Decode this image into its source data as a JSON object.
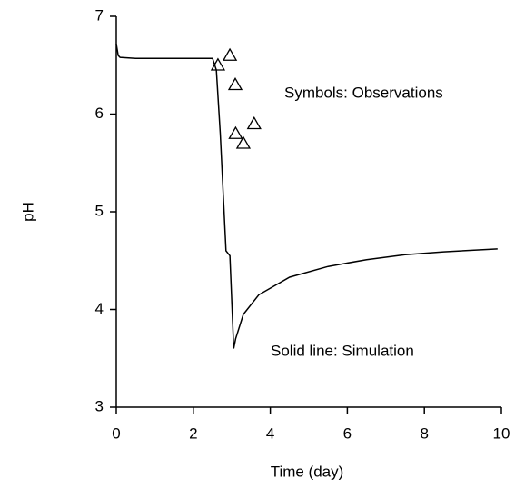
{
  "chart_data": {
    "type": "line",
    "x_label": "Time (day)",
    "y_label": "pH",
    "xlim": [
      0,
      10
    ],
    "ylim": [
      3,
      7
    ],
    "xticks": [
      0,
      2,
      4,
      6,
      8,
      10
    ],
    "yticks": [
      3,
      4,
      5,
      6,
      7
    ],
    "annotations": [
      "Symbols: Observations",
      "Solid line: Simulation"
    ],
    "series": [
      {
        "color": "#000000",
        "marker": "none",
        "linestyle": "solid",
        "x": [
          0,
          0.05,
          0.1,
          0.5,
          1.5,
          2.5,
          2.6,
          2.7,
          2.8,
          2.85,
          2.95,
          3.05,
          3.1,
          3.3,
          3.7,
          4.5,
          5.5,
          6.5,
          7.5,
          8.5,
          9.9
        ],
        "values": [
          6.72,
          6.6,
          6.58,
          6.57,
          6.57,
          6.57,
          6.45,
          5.8,
          5.0,
          4.6,
          4.55,
          3.6,
          3.7,
          3.95,
          4.15,
          4.33,
          4.44,
          4.51,
          4.56,
          4.59,
          4.62
        ]
      },
      {
        "color": "#000000",
        "marker": "triangle",
        "linestyle": "none",
        "x": [
          2.64,
          2.95,
          3.09,
          3.1,
          3.3,
          3.58
        ],
        "values": [
          6.5,
          6.6,
          6.3,
          5.8,
          5.7,
          5.9
        ]
      }
    ]
  }
}
